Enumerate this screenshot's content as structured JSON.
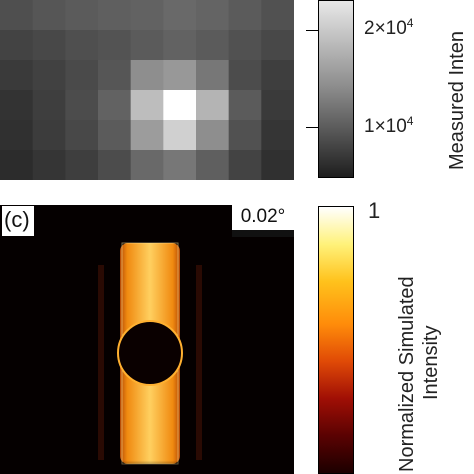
{
  "top_panel": {
    "colorbar_label": "Measured  Inten",
    "ticks": [
      {
        "mantissa": "2×10",
        "exponent": "4"
      },
      {
        "mantissa": "1×10",
        "exponent": "4"
      }
    ],
    "pixel_grid": [
      [
        0.25,
        0.28,
        0.3,
        0.32,
        0.33,
        0.36,
        0.34,
        0.3,
        0.26
      ],
      [
        0.2,
        0.22,
        0.25,
        0.27,
        0.3,
        0.33,
        0.3,
        0.26,
        0.22
      ],
      [
        0.16,
        0.19,
        0.23,
        0.28,
        0.52,
        0.56,
        0.42,
        0.24,
        0.18
      ],
      [
        0.13,
        0.18,
        0.24,
        0.33,
        0.72,
        1.0,
        0.68,
        0.3,
        0.16
      ],
      [
        0.12,
        0.17,
        0.22,
        0.3,
        0.58,
        0.8,
        0.52,
        0.26,
        0.14
      ],
      [
        0.1,
        0.14,
        0.18,
        0.24,
        0.36,
        0.42,
        0.32,
        0.2,
        0.12
      ]
    ]
  },
  "bottom_panel": {
    "panel_label": "(c)",
    "scale_label": "0.02°",
    "colorbar_label_line1": "Normalized Simulated",
    "colorbar_label_line2": "Intensity",
    "colorbar_max": "1"
  },
  "colors": {
    "background": "#ffffff",
    "sim_background": "#050000",
    "sim_hot": "#fff5c0",
    "sim_warm": "#f08a10"
  }
}
